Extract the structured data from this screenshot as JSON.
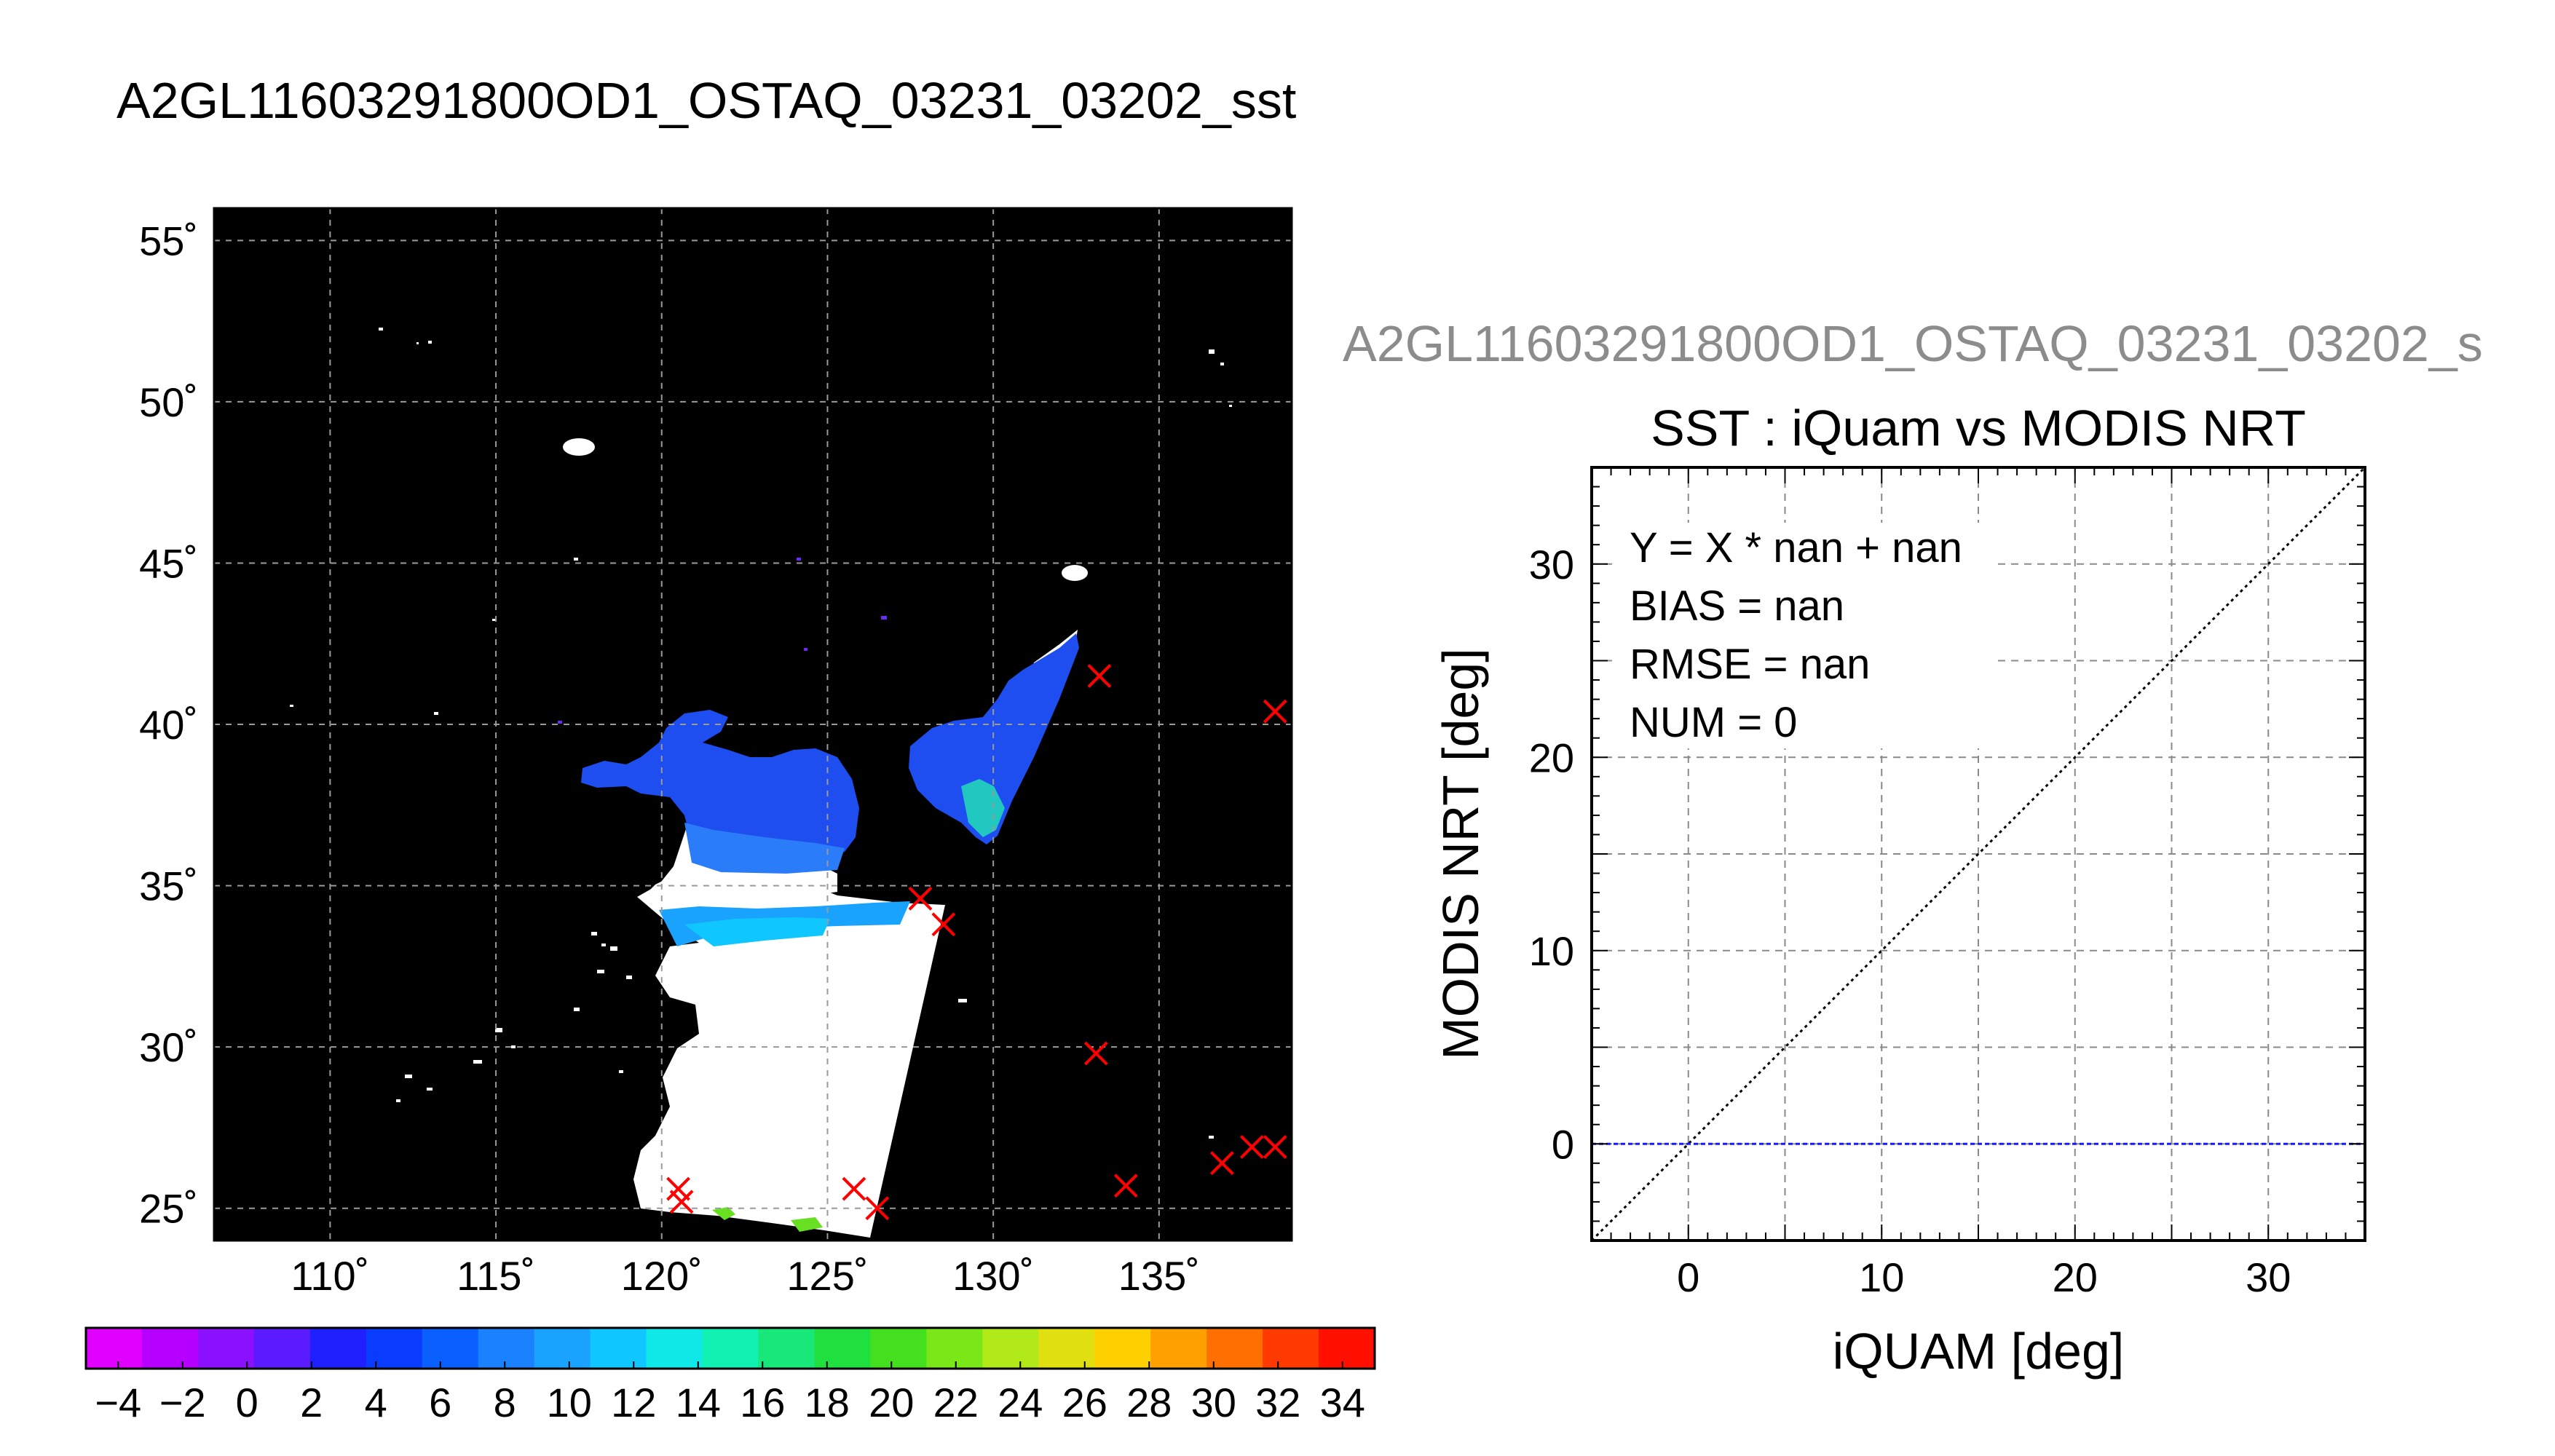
{
  "figure": {
    "main_title": "A2GL11603291800OD1_OSTAQ_03231_03202_sst",
    "secondary_title": "A2GL11603291800OD1_OSTAQ_03231_03202_s"
  },
  "chart_data": [
    {
      "type": "map",
      "title": "",
      "lon_range": [
        106.5,
        139
      ],
      "lat_range": [
        24,
        56
      ],
      "lon_ticks": [
        110,
        115,
        120,
        125,
        130,
        135
      ],
      "lon_tick_labels": [
        "110˚",
        "115˚",
        "120˚",
        "125˚",
        "130˚",
        "135˚"
      ],
      "lat_ticks": [
        25,
        30,
        35,
        40,
        45,
        50,
        55
      ],
      "lat_tick_labels": [
        "25˚",
        "30˚",
        "35˚",
        "40˚",
        "45˚",
        "50˚",
        "55˚"
      ],
      "grid": true,
      "background": "#000000",
      "buoy_markers": {
        "symbol": "x",
        "color": "#ff0000",
        "points": [
          [
            133.2,
            41.5
          ],
          [
            138.5,
            40.4
          ],
          [
            127.8,
            34.6
          ],
          [
            128.5,
            33.8
          ],
          [
            133.1,
            29.8
          ],
          [
            134,
            25.7
          ],
          [
            136.9,
            26.4
          ],
          [
            137.8,
            26.9
          ],
          [
            138.5,
            26.9
          ],
          [
            120.5,
            25.6
          ],
          [
            120.6,
            25.2
          ],
          [
            125.8,
            25.6
          ],
          [
            126.5,
            25
          ]
        ]
      },
      "colorbar": {
        "min": -5,
        "max": 35,
        "step": 2,
        "tick_labels": [
          "−4",
          "−2",
          "0",
          "2",
          "4",
          "6",
          "8",
          "10",
          "12",
          "14",
          "16",
          "18",
          "20",
          "22",
          "24",
          "26",
          "28",
          "30",
          "32",
          "34"
        ],
        "colors": [
          "#e000ff",
          "#b500ff",
          "#8a10ff",
          "#5a1bff",
          "#2020ff",
          "#0a3cff",
          "#0a60ff",
          "#1a82ff",
          "#1aa2ff",
          "#10c6ff",
          "#10e8e8",
          "#10f0b0",
          "#18e87a",
          "#20e040",
          "#44e020",
          "#7ae818",
          "#b0e818",
          "#e0e010",
          "#ffd000",
          "#ffa000",
          "#ff7000",
          "#ff3a00",
          "#ff1000"
        ]
      }
    },
    {
      "type": "scatter",
      "title": "SST : iQuam vs MODIS NRT",
      "xlabel": "iQUAM [deg]",
      "ylabel": "MODIS NRT [deg]",
      "xlim": [
        -5,
        35
      ],
      "ylim": [
        -5,
        35
      ],
      "xticks": [
        0,
        10,
        20,
        30
      ],
      "yticks": [
        0,
        10,
        20,
        30
      ],
      "grid": true,
      "grid_step": 5,
      "points": [],
      "reference_lines": [
        {
          "style": "dotted",
          "color": "#000000",
          "from": [
            -5,
            -5
          ],
          "to": [
            35,
            35
          ]
        },
        {
          "style": "dashed",
          "color": "#1a1aff",
          "from": [
            -5,
            0
          ],
          "to": [
            35,
            0
          ]
        }
      ],
      "stats": [
        "Y = X * nan + nan",
        "BIAS = nan",
        "RMSE = nan",
        "NUM = 0"
      ]
    }
  ]
}
